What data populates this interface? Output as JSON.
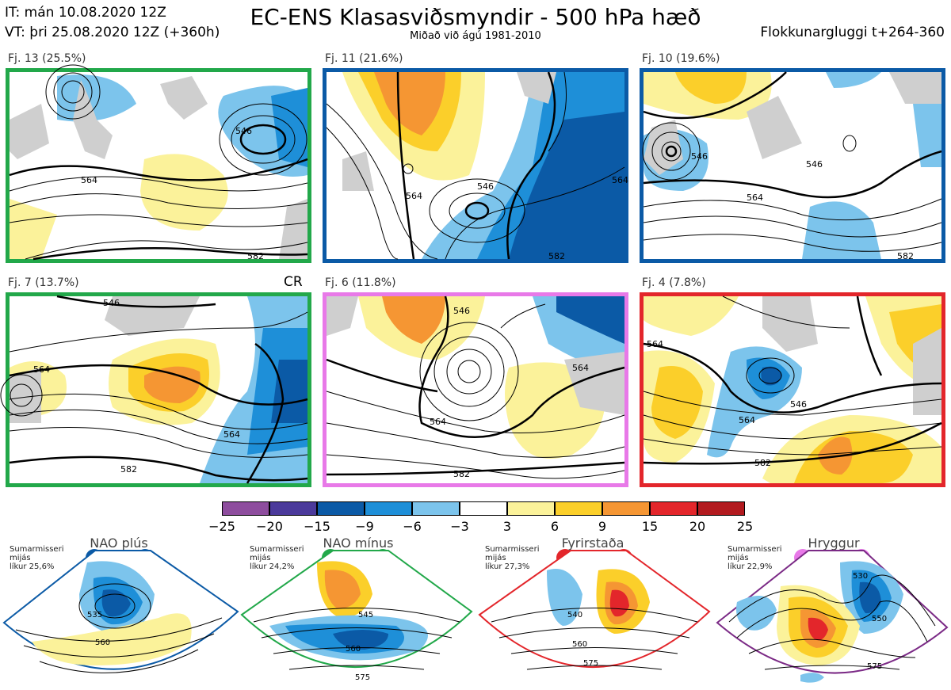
{
  "header": {
    "it": "IT: mán 10.08.2020 12Z",
    "vt": "VT: þri 25.08.2020 12Z  (+360h)",
    "title": "EC-ENS Klasasviðsmyndir - 500 hPa hæð",
    "subtitle": "Miðað við ágú 1981-2010",
    "window": "Flokkunargluggi t+264-360"
  },
  "panels": [
    {
      "label": "Fj. 13 (25.5%)",
      "border": "#22a84a",
      "contours": [
        "546",
        "564",
        "582"
      ]
    },
    {
      "label": "Fj. 11 (21.6%)",
      "border": "#0b5aa6",
      "contours": [
        "564",
        "546",
        "564",
        "582"
      ]
    },
    {
      "label": "Fj. 10 (19.6%)",
      "border": "#0b5aa6",
      "contours": [
        "546",
        "546",
        "564",
        "582"
      ]
    },
    {
      "label": "Fj. 7 (13.7%)",
      "border": "#22a84a",
      "tag": "CR",
      "contours": [
        "546",
        "564",
        "564",
        "582"
      ]
    },
    {
      "label": "Fj. 6 (11.8%)",
      "border": "#e879e8",
      "contours": [
        "546",
        "564",
        "564",
        "582"
      ]
    },
    {
      "label": "Fj. 4 (7.8%)",
      "border": "#e3262b",
      "contours": [
        "564",
        "546",
        "564",
        "582"
      ]
    }
  ],
  "colorbar": {
    "ticks": [
      "−25",
      "−20",
      "−15",
      "−9",
      "−6",
      "−3",
      "3",
      "6",
      "9",
      "15",
      "20",
      "25"
    ],
    "colors": [
      "#8e4d9e",
      "#4b3a9b",
      "#0b5aa6",
      "#1e8fd8",
      "#7cc4ec",
      "#ffffff",
      "#fbf29a",
      "#fbcf2a",
      "#f59633",
      "#e3262b",
      "#b21a1f"
    ]
  },
  "regimes": [
    {
      "name": "NAO plús",
      "season": "Sumarmisseri",
      "mean": "mijás",
      "prob": "líkur 25,6%",
      "dot_color": "#0b5aa6",
      "frame": "#0b5aa6",
      "contours": [
        "535",
        "560"
      ]
    },
    {
      "name": "NAO mínus",
      "season": "Sumarmisseri",
      "mean": "mijás",
      "prob": "líkur 24,2%",
      "dot_color": "#22a84a",
      "frame": "#22a84a",
      "contours": [
        "545",
        "560",
        "575"
      ]
    },
    {
      "name": "Fyrirstaða",
      "season": "Sumarmisseri",
      "mean": "mijás",
      "prob": "líkur 27,3%",
      "dot_color": "#e3262b",
      "frame": "#e3262b",
      "contours": [
        "540",
        "560",
        "575"
      ]
    },
    {
      "name": "Hryggur",
      "season": "Sumarmisseri",
      "mean": "mijás",
      "prob": "líkur 22,9%",
      "dot_color": "#e879e8",
      "frame": "#7b2a86",
      "contours": [
        "530",
        "550",
        "575"
      ]
    }
  ]
}
